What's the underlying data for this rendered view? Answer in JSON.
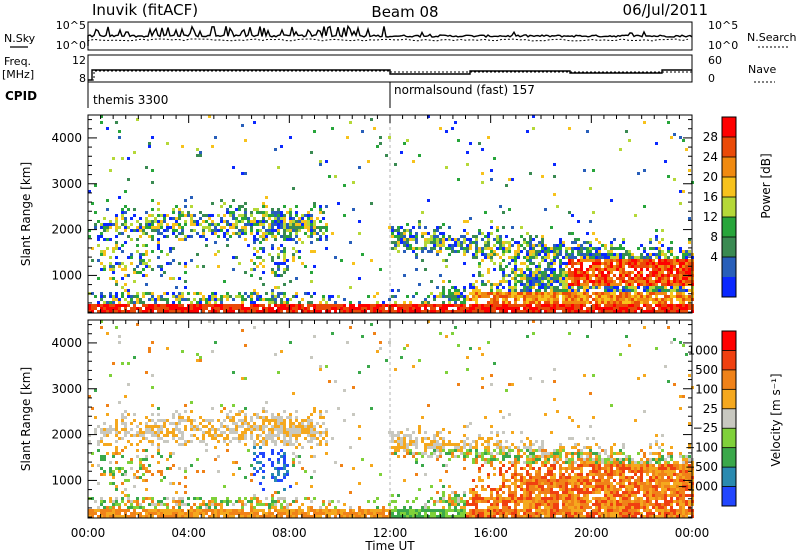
{
  "header": {
    "station": "Inuvik (fitACF)",
    "beam": "Beam 08",
    "date": "06/Jul/2011"
  },
  "top_panels": {
    "nsky_label": "N.Sky",
    "nsky_ticks": [
      "10^5",
      "10^0"
    ],
    "nsearch_label": "N.Search",
    "nsearch_ticks": [
      "10^5",
      "10^0"
    ],
    "freq_label_1": "Freq.",
    "freq_label_2": "[MHz]",
    "freq_ticks": [
      "12",
      "8"
    ],
    "nave_label": "Nave",
    "nave_ticks": [
      "60",
      "0"
    ],
    "cpid_label": "CPID",
    "cpid_segments": [
      {
        "name": "themis 3300",
        "start_hour": 0
      },
      {
        "name": "normalsound (fast) 157",
        "start_hour": 12
      }
    ]
  },
  "chart_data": [
    {
      "type": "heatmap",
      "name": "power",
      "ylabel": "Slant Range [km]",
      "yticks": [
        "1000",
        "2000",
        "3000",
        "4000"
      ],
      "ylim": [
        180,
        4500
      ],
      "xlim_hours": [
        0,
        24
      ],
      "colorbar_label": "Power [dB]",
      "colorbar_ticks": [
        "28",
        "24",
        "20",
        "16",
        "12",
        "8",
        "4"
      ],
      "colors": [
        "#0a28ff",
        "#285fba",
        "#3a8a52",
        "#27a53a",
        "#b5d838",
        "#f7c21c",
        "#f08a10",
        "#ea4a08",
        "#ff0000"
      ]
    },
    {
      "type": "heatmap",
      "name": "velocity",
      "ylabel": "Slant Range [km]",
      "yticks": [
        "1000",
        "2000",
        "3000",
        "4000"
      ],
      "ylim": [
        180,
        4500
      ],
      "xlim_hours": [
        0,
        24
      ],
      "xlabel": "Time UT",
      "xticks": [
        "00:00",
        "04:00",
        "08:00",
        "12:00",
        "16:00",
        "20:00",
        "00:00"
      ],
      "colorbar_label": "Velocity [m s⁻¹]",
      "colorbar_ticks": [
        "1000",
        "500",
        "100",
        "25",
        "−25",
        "−100",
        "−500",
        "−1000"
      ],
      "colors": [
        "#2246ff",
        "#2a8ab0",
        "#3aa84a",
        "#7fd13a",
        "#c8c8c0",
        "#f5a81e",
        "#f08218",
        "#f04010",
        "#ff0000"
      ]
    }
  ]
}
